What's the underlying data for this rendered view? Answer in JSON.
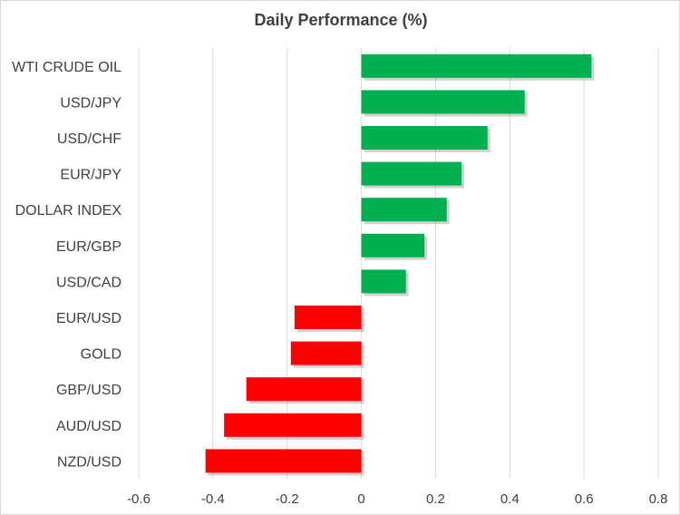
{
  "colors": {
    "positive": "#00b050",
    "negative": "#ff0000",
    "grid": "#d9d9d9",
    "text": "#404040"
  },
  "chart_data": {
    "type": "bar",
    "orientation": "horizontal",
    "title": "Daily Performance  (%)",
    "xlabel": "",
    "ylabel": "",
    "categories": [
      "WTI CRUDE OIL",
      "USD/JPY",
      "USD/CHF",
      "EUR/JPY",
      "DOLLAR INDEX",
      "EUR/GBP",
      "USD/CAD",
      "EUR/USD",
      "GOLD",
      "GBP/USD",
      "AUD/USD",
      "NZD/USD"
    ],
    "values": [
      0.62,
      0.44,
      0.34,
      0.27,
      0.23,
      0.17,
      0.12,
      -0.18,
      -0.19,
      -0.31,
      -0.37,
      -0.42
    ],
    "xlim": [
      -0.6,
      0.8
    ],
    "xticks": [
      -0.6,
      -0.4,
      -0.2,
      0,
      0.2,
      0.4,
      0.6,
      0.8
    ],
    "xtick_labels": [
      "-0.6",
      "-0.4",
      "-0.2",
      "0",
      "0.2",
      "0.4",
      "0.6",
      "0.8"
    ],
    "grid": "vertical",
    "legend": "none"
  }
}
